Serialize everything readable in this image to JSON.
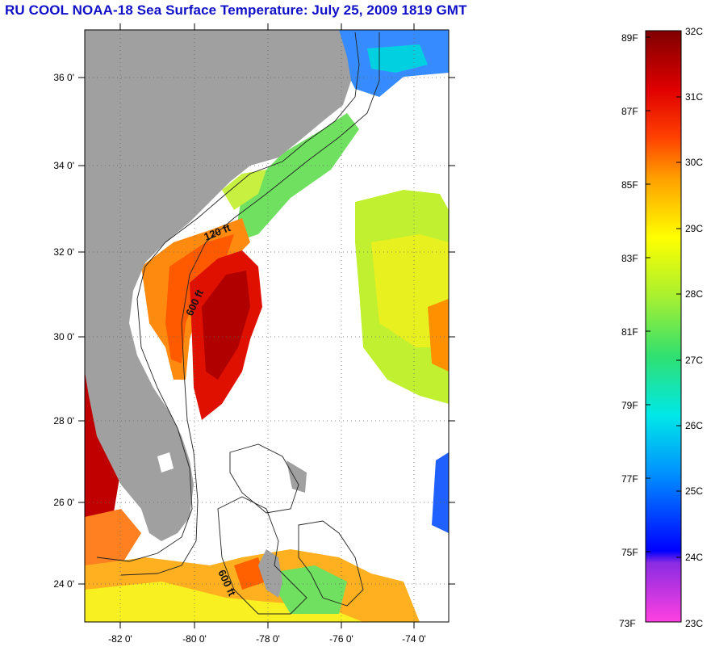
{
  "title": "RU COOL  NOAA-18  Sea Surface Temperature:  July 25, 2009 1819 GMT",
  "map": {
    "lat_ticks": [
      "36 0'",
      "34 0'",
      "32 0'",
      "30 0'",
      "28 0'",
      "26 0'",
      "24 0'"
    ],
    "lon_ticks": [
      "-82 0'",
      "-80 0'",
      "-78 0'",
      "-76 0'",
      "-74 0'"
    ],
    "contour_labels": [
      "120 ft",
      "600 ft",
      "600 ft"
    ],
    "colors": {
      "land": "#a0a0a0",
      "ocean_cloud": "#ffffff"
    }
  },
  "colorbar": {
    "fahrenheit_labels": [
      "89F",
      "87F",
      "85F",
      "83F",
      "81F",
      "79F",
      "77F",
      "75F",
      "73F"
    ],
    "celsius_labels": [
      "32C",
      "31C",
      "30C",
      "29C",
      "28C",
      "27C",
      "26C",
      "25C",
      "24C",
      "23C"
    ],
    "colors": [
      "#ff40e0",
      "#8a2be2",
      "#0000ff",
      "#0090ff",
      "#00e8e8",
      "#30e070",
      "#a8f030",
      "#ffff00",
      "#ffa000",
      "#ff4000",
      "#e00000",
      "#800000"
    ]
  }
}
